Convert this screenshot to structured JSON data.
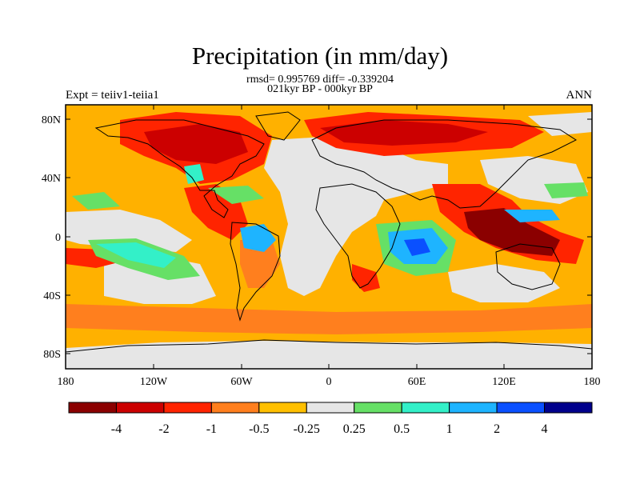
{
  "title": "Precipitation (in mm/day)",
  "stats_line": "rmsd= 0.995769 diff= -0.339204",
  "period_line": "021kyr BP - 000kyr BP",
  "left_title": "Expt = teiiv1-teiia1",
  "right_title": "ANN",
  "lat_ticks": [
    "80N",
    "40N",
    "0",
    "40S",
    "80S"
  ],
  "lon_ticks": [
    "180",
    "120W",
    "60W",
    "0",
    "60E",
    "120E",
    "180"
  ],
  "colorbar": {
    "labels": [
      "-4",
      "-2",
      "-1",
      "-0.5",
      "-0.25",
      "0.25",
      "0.5",
      "1",
      "2",
      "4"
    ],
    "colors": [
      "#8B0000",
      "#CC0000",
      "#FF2400",
      "#FF7F1E",
      "#FFC000",
      "#E6E6E6",
      "#66E066",
      "#33F0C8",
      "#1EB4FF",
      "#0A50FF",
      "#00008C"
    ]
  },
  "field_colors": {
    "ocean_bg": "#FFB100",
    "neutral": "#E6E6E6",
    "dark_red": "#8B0000",
    "red": "#CC0000",
    "orange_red": "#FF2400",
    "orange": "#FF7F1E",
    "green": "#66E066",
    "cyan": "#33F0C8",
    "light_blue": "#1EB4FF",
    "blue": "#0A50FF"
  }
}
